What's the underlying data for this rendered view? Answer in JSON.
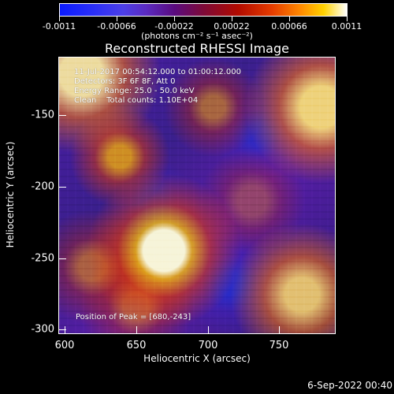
{
  "colorbar": {
    "tick_labels": [
      "-0.0011",
      "-0.00066",
      "-0.00022",
      "0.00022",
      "0.00066",
      "0.0011"
    ],
    "units_label": "(photons cm⁻² s⁻¹ asec⁻²)"
  },
  "title": "Reconstructed RHESSI Image",
  "plot_text": {
    "line1": "11-Jul-2017 00:54:12.000 to 01:00:12.000",
    "line2": "Detectors: 3F 6F 8F, Att 0",
    "line3": "Energy Range: 25.0 - 50.0 keV",
    "line4": "Clean    Total counts: 1.10E+04",
    "peak": "Position of Peak = [680,-243]"
  },
  "axes": {
    "xlabel": "Heliocentric X (arcsec)",
    "ylabel": "Heliocentric Y (arcsec)",
    "xticks": [
      "600",
      "650",
      "700",
      "750"
    ],
    "yticks": [
      "-150",
      "-200",
      "-250",
      "-300"
    ]
  },
  "footer": {
    "timestamp": "6-Sep-2022 00:40"
  }
}
